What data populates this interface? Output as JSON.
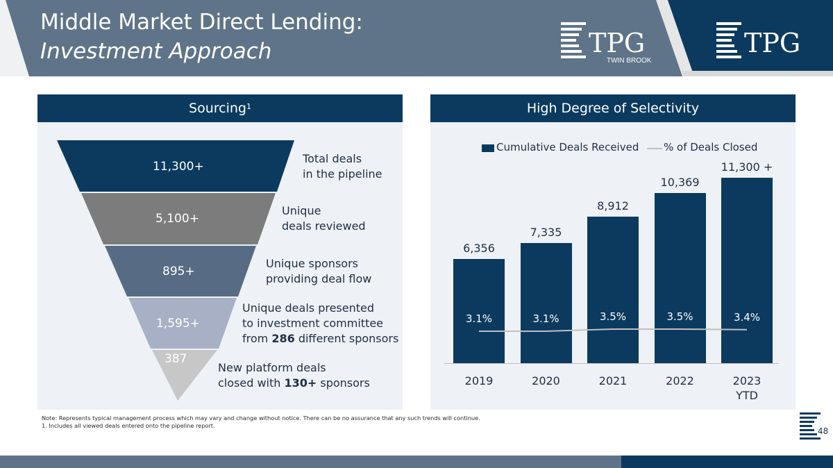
{
  "header": {
    "title_line1": "Middle Market Direct Lending:",
    "title_line2": "Investment Approach",
    "logo1_text": "TPG",
    "logo1_sub": "TWIN BROOK",
    "logo2_text": "TPG",
    "colors": {
      "slate": "#5f7489",
      "navy": "#0b3a5e"
    }
  },
  "sourcing": {
    "heading": "Sourcing",
    "heading_sup": "1",
    "levels": [
      {
        "value": "11,300+",
        "desc": [
          "Total deals",
          "in the pipeline"
        ],
        "color": "#0b3a5e"
      },
      {
        "value": "5,100+",
        "desc": [
          "Unique",
          "deals reviewed"
        ],
        "color": "#7c7c7c"
      },
      {
        "value": "895+",
        "desc": [
          "Unique sponsors",
          "providing deal flow"
        ],
        "color": "#576c84"
      },
      {
        "value": "1,595+",
        "desc": [
          "Unique deals presented",
          "to investment committee"
        ],
        "desc3_pre": "from ",
        "desc3_bold": "286",
        "desc3_post": " different sponsors",
        "color": "#a7b0c4"
      },
      {
        "value": "387",
        "desc": [
          "New platform deals"
        ],
        "desc2_pre": "closed with ",
        "desc2_bold": "130+",
        "desc2_post": " sponsors",
        "color": "#c7c7c7"
      }
    ]
  },
  "selectivity": {
    "heading": "High Degree of Selectivity"
  },
  "chart_data": {
    "type": "bar",
    "categories": [
      "2019",
      "2020",
      "2021",
      "2022",
      "2023 YTD"
    ],
    "category_lines": [
      [
        "2019"
      ],
      [
        "2020"
      ],
      [
        "2021"
      ],
      [
        "2022"
      ],
      [
        "2023",
        "YTD"
      ]
    ],
    "series": [
      {
        "name": "Cumulative Deals Received",
        "type": "bar",
        "values": [
          6356,
          7335,
          8912,
          10369,
          11300
        ],
        "labels": [
          "6,356",
          "7,335",
          "8,912",
          "10,369",
          "11,300 +"
        ],
        "color": "#0b3a5e"
      },
      {
        "name": "% of Deals Closed",
        "type": "line",
        "values": [
          3.1,
          3.1,
          3.5,
          3.5,
          3.4
        ],
        "labels": [
          "3.1%",
          "3.1%",
          "3.5%",
          "3.5%",
          "3.4%"
        ],
        "color": "#c0c0c0"
      }
    ],
    "ylim": [
      0,
      13000
    ],
    "grid": false,
    "legend": "top"
  },
  "notes": {
    "line1": "Note: Represents typical management process which may vary and change without notice. There can be no assurance that any such trends will continue.",
    "line2": "1. Includes all viewed deals entered onto the pipeline report."
  },
  "footer": {
    "page_number": "48",
    "colors": {
      "slate": "#5f7489",
      "navy": "#0b3a5e"
    }
  }
}
